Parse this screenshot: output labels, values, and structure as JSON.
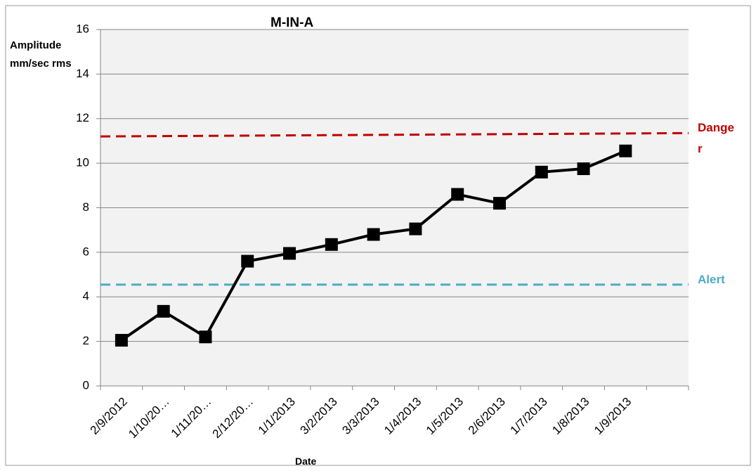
{
  "chart_data": {
    "type": "line",
    "title": "M-IN-A",
    "x_label": "Date",
    "y_label": "Amplitude mm/sec rms",
    "categories": [
      "2/9/2012",
      "1/10/20…",
      "1/11/20…",
      "2/12/20…",
      "1/1/2013",
      "3/2/2013",
      "3/3/2013",
      "1/4/2013",
      "1/5/2013",
      "2/6/2013",
      "1/7/2013",
      "1/8/2013",
      "1/9/2013",
      null
    ],
    "series": [
      {
        "color": "#000000",
        "values": [
          2.05,
          3.35,
          2.2,
          5.6,
          5.95,
          6.35,
          6.8,
          7.05,
          8.6,
          8.2,
          9.6,
          9.75,
          10.55,
          null
        ]
      }
    ],
    "thresholds": [
      {
        "name": "Danger",
        "color": "#c00000",
        "values": [
          11.2,
          11.35
        ]
      },
      {
        "name": "Alert",
        "color": "#4bacc6",
        "values": [
          4.55,
          4.55
        ]
      }
    ],
    "ylim": [
      0,
      16
    ],
    "yticks": [
      0,
      2,
      4,
      6,
      8,
      10,
      12,
      14,
      16
    ],
    "grid": true
  }
}
